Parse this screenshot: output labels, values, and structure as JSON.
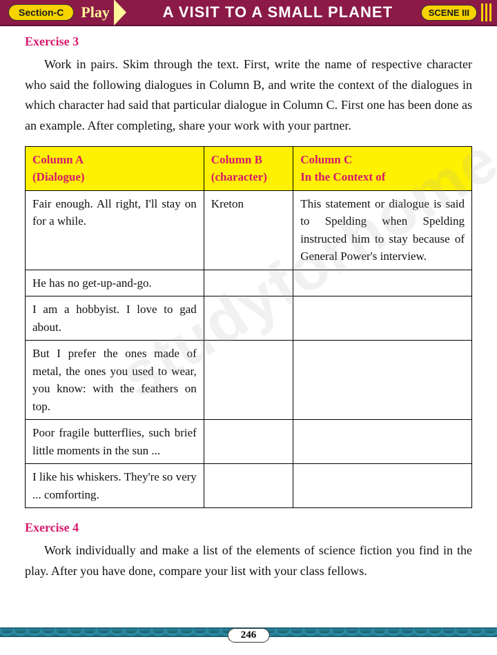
{
  "header": {
    "section_badge": "Section-C",
    "play_label": "Play",
    "title": "A VISIT TO A SMALL PLANET",
    "scene_badge": "SCENE III"
  },
  "watermark": "studyforhome.com",
  "exercise3": {
    "heading": "Exercise 3",
    "instructions": "Work in pairs. Skim through the text. First, write the name of respective character who said the following dialogues in Column B, and write the context of the dialogues in which character had said that particular dialogue in Column C. First one has been done as an example. After completing, share your work with your partner.",
    "table": {
      "columns": {
        "a": "Column A\n(Dialogue)",
        "b": "Column  B (character)",
        "c": "Column C\nIn the Context of"
      },
      "rows": [
        {
          "dialogue": "Fair enough. All right, I'll stay on for a while.",
          "character": "Kreton",
          "context": "This statement or dialogue is said to Spelding when Spelding instructed him to stay because of General Power's interview."
        },
        {
          "dialogue": "He has no get-up-and-go.",
          "character": "",
          "context": ""
        },
        {
          "dialogue": "I am a hobbyist. I love to gad about.",
          "character": "",
          "context": ""
        },
        {
          "dialogue": "But I prefer the ones made of metal, the ones you used to wear, you know: with the feathers on top.",
          "character": "",
          "context": ""
        },
        {
          "dialogue": "Poor fragile butterflies, such brief little moments in the sun ...",
          "character": "",
          "context": ""
        },
        {
          "dialogue": "I like his whiskers. They're so very ... comforting.",
          "character": "",
          "context": ""
        }
      ]
    }
  },
  "exercise4": {
    "heading": "Exercise 4",
    "instructions": "Work individually and make a list of the elements of science fiction you find in the play. After you have done, compare your list with your class fellows."
  },
  "page_number": "246"
}
